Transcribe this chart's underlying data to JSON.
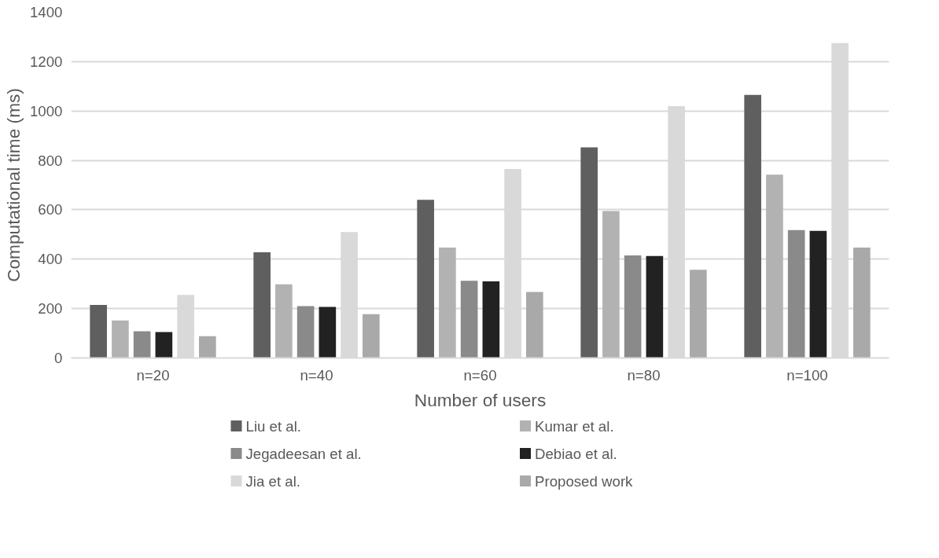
{
  "chart_data": {
    "type": "bar",
    "xlabel": "Number of users",
    "ylabel": "Computational time (ms)",
    "categories": [
      "n=20",
      "n=40",
      "n=60",
      "n=80",
      "n=100"
    ],
    "series": [
      {
        "name": "Liu et al.",
        "color": "#5f5f5f",
        "values": [
          215,
          428,
          640,
          853,
          1065
        ]
      },
      {
        "name": "Kumar et al.",
        "color": "#b2b2b2",
        "values": [
          152,
          298,
          447,
          595,
          742
        ]
      },
      {
        "name": "Jegadeesan et al.",
        "color": "#8a8a8a",
        "values": [
          108,
          210,
          313,
          415,
          518
        ]
      },
      {
        "name": "Debiao et al.",
        "color": "#222222",
        "values": [
          105,
          207,
          310,
          413,
          515
        ]
      },
      {
        "name": "Jia et al.",
        "color": "#d9d9d9",
        "values": [
          255,
          510,
          765,
          1020,
          1275
        ]
      },
      {
        "name": "Proposed work",
        "color": "#a9a9a9",
        "values": [
          88,
          177,
          267,
          357,
          447
        ]
      }
    ],
    "ylim": [
      0,
      1400
    ],
    "yticks": [
      0,
      200,
      400,
      600,
      800,
      1000,
      1200,
      1400
    ],
    "grid": "y",
    "legend": "bottom"
  }
}
